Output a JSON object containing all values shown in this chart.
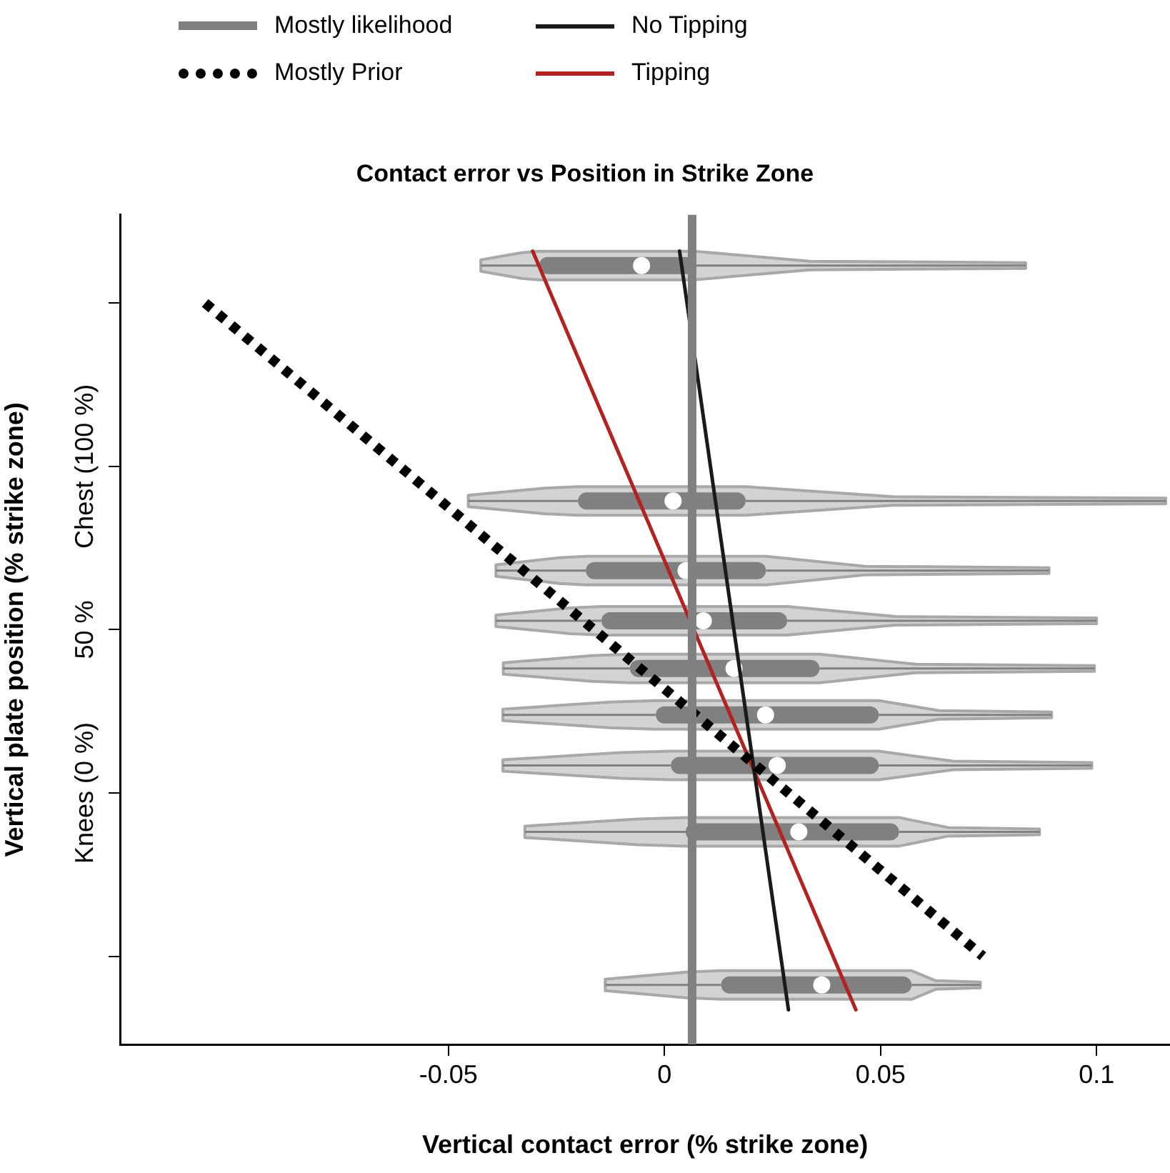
{
  "chart_data": {
    "type": "box",
    "title": "Contact error vs Position in Strike Zone",
    "xlabel": "Vertical contact error (% strike zone)",
    "ylabel": "Vertical plate position (% strike zone)",
    "xlim": [
      -0.126,
      0.117
    ],
    "xticks": [
      -0.05,
      0,
      0.05,
      0.1
    ],
    "ylim": [
      -77,
      177
    ],
    "yticks": [
      {
        "value": -50,
        "label": null
      },
      {
        "value": 0,
        "label": "Knees (0 %)"
      },
      {
        "value": 50,
        "label": "50 %"
      },
      {
        "value": 100,
        "label": "Chest (100 %)"
      },
      {
        "value": 150,
        "label": null
      }
    ],
    "orientation": "horizontal",
    "grid": false,
    "legend": "top left",
    "marker": "none",
    "series": [
      {
        "color": "#808080",
        "x": [
          161.5,
          89.4,
          68.1,
          52.7,
          38.1,
          23.9,
          8.4,
          -11.9,
          -58.8
        ],
        "boxes": [
          {
            "low": -0.0425,
            "q1": -0.029,
            "median": -0.0053,
            "q3": 0.0069,
            "high": 0.0836
          },
          {
            "low": -0.0454,
            "q1": -0.02,
            "median": 0.002,
            "q3": 0.0188,
            "high": 0.116
          },
          {
            "low": -0.039,
            "q1": -0.0182,
            "median": 0.005,
            "q3": 0.0235,
            "high": 0.089
          },
          {
            "low": -0.039,
            "q1": -0.0146,
            "median": 0.009,
            "q3": 0.0284,
            "high": 0.1
          },
          {
            "low": -0.0373,
            "q1": -0.008,
            "median": 0.0161,
            "q3": 0.0359,
            "high": 0.0995
          },
          {
            "low": -0.0374,
            "q1": -0.002,
            "median": 0.0234,
            "q3": 0.0496,
            "high": 0.0896
          },
          {
            "low": -0.0374,
            "q1": 0.0015,
            "median": 0.0261,
            "q3": 0.0496,
            "high": 0.0989
          },
          {
            "low": -0.0323,
            "q1": 0.0049,
            "median": 0.0311,
            "q3": 0.0543,
            "high": 0.0868
          },
          {
            "low": -0.0137,
            "q1": 0.0131,
            "median": 0.0364,
            "q3": 0.0572,
            "high": 0.0731
          }
        ]
      },
      {
        "type": "line",
        "name": "Mostly likelihood",
        "color": "#808080",
        "line_style": "solid",
        "x": [
          177,
          -77
        ],
        "values": [
          0.0064,
          0.0064
        ]
      },
      {
        "type": "line",
        "name": "Mostly Prior",
        "color": "#000000",
        "line_style": "dotted",
        "x": [
          150,
          -50
        ],
        "values": [
          -0.1063,
          0.0737
        ]
      },
      {
        "type": "line",
        "name": "No Tipping",
        "color": "#1a1a1a",
        "line_style": "solid",
        "x": [
          165.9,
          -66.4
        ],
        "values": [
          0.0035,
          0.0287
        ]
      },
      {
        "type": "line",
        "name": "Tipping",
        "color": "#b22222",
        "line_style": "solid",
        "x": [
          165.9,
          -66.4
        ],
        "values": [
          -0.0305,
          0.0443
        ]
      }
    ]
  }
}
